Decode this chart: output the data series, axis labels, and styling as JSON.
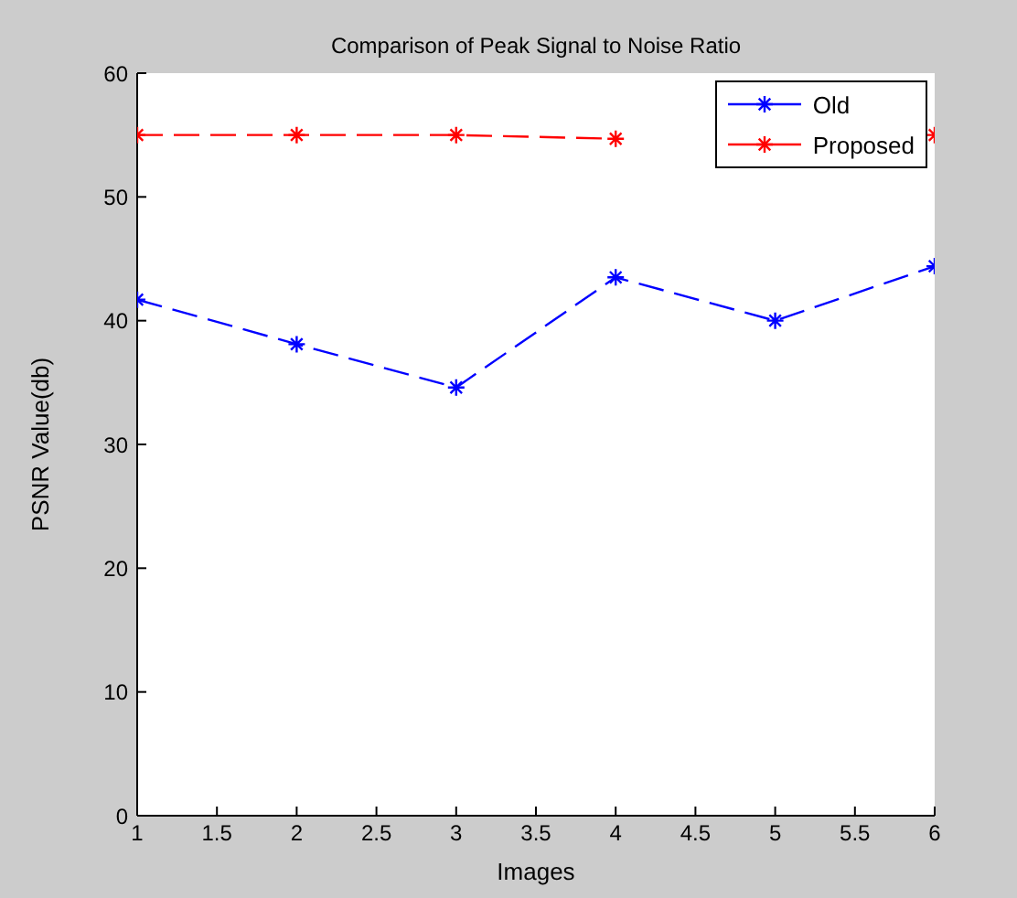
{
  "chart_data": {
    "type": "line",
    "title": "Comparison of Peak Signal to Noise Ratio",
    "xlabel": "Images",
    "ylabel": "PSNR Value(db)",
    "x": [
      1,
      2,
      3,
      4,
      5,
      6
    ],
    "series": [
      {
        "name": "Old",
        "color": "#0000ff",
        "values": [
          41.7,
          38.1,
          34.6,
          43.5,
          40.0,
          44.4
        ]
      },
      {
        "name": "Proposed",
        "color": "#ff0000",
        "values": [
          55.0,
          55.0,
          55.0,
          54.7,
          null,
          55.0
        ]
      }
    ],
    "xlim": [
      1,
      6
    ],
    "xticks": [
      1,
      1.5,
      2,
      2.5,
      3,
      3.5,
      4,
      4.5,
      5,
      5.5,
      6
    ],
    "ylim": [
      0,
      60
    ],
    "yticks": [
      0,
      10,
      20,
      30,
      40,
      50,
      60
    ],
    "legend": "top right",
    "marker": "cross",
    "line_style": "dashed",
    "grid": false
  }
}
